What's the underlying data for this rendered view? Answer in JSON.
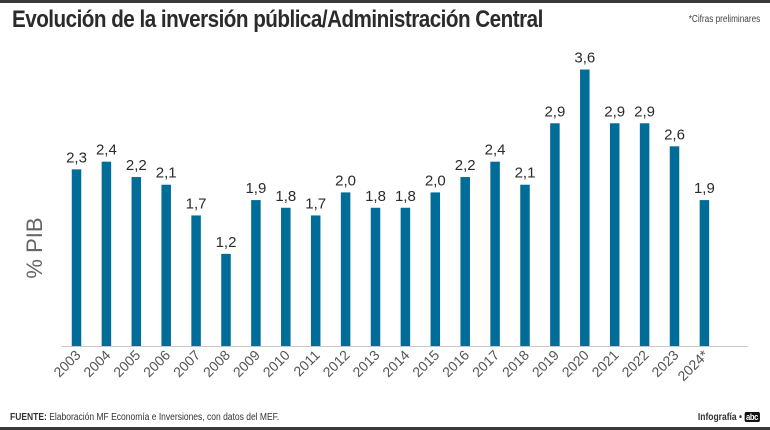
{
  "header": {
    "title": "Evolución de la inversión pública/Administración Central",
    "note": "*Cifras preliminares"
  },
  "footer": {
    "source_label": "FUENTE:",
    "source_text": "Elaboración MF Economía e Inversiones, con datos del MEF.",
    "credit_label": "Infografía •",
    "brand": "abc"
  },
  "colors": {
    "bar": "#006c98",
    "axis": "#c8c8c8",
    "text": "#2b2b2b",
    "tick": "#555555"
  },
  "chart_data": {
    "type": "bar",
    "title": "Evolución de la inversión pública/Administración Central",
    "xlabel": "",
    "ylabel": "% PIB",
    "ylim": [
      0,
      3.6
    ],
    "grid": false,
    "legend": "none",
    "categories": [
      "2003",
      "2004",
      "2005",
      "2006",
      "2007",
      "2008",
      "2009",
      "2010",
      "2011",
      "2012",
      "2013",
      "2014",
      "2015",
      "2016",
      "2017",
      "2018",
      "2019",
      "2020",
      "2021",
      "2022",
      "2023",
      "2024*"
    ],
    "values": [
      2.3,
      2.4,
      2.2,
      2.1,
      1.7,
      1.2,
      1.9,
      1.8,
      1.7,
      2.0,
      1.8,
      1.8,
      2.0,
      2.2,
      2.4,
      2.1,
      2.9,
      3.6,
      2.9,
      2.9,
      2.6,
      1.9
    ],
    "value_labels": [
      "2,3",
      "2,4",
      "2,2",
      "2,1",
      "1,7",
      "1,2",
      "1,9",
      "1,8",
      "1,7",
      "2,0",
      "1,8",
      "1,8",
      "2,0",
      "2,2",
      "2,4",
      "2,1",
      "2,9",
      "3,6",
      "2,9",
      "2,9",
      "2,6",
      "1,9"
    ]
  }
}
